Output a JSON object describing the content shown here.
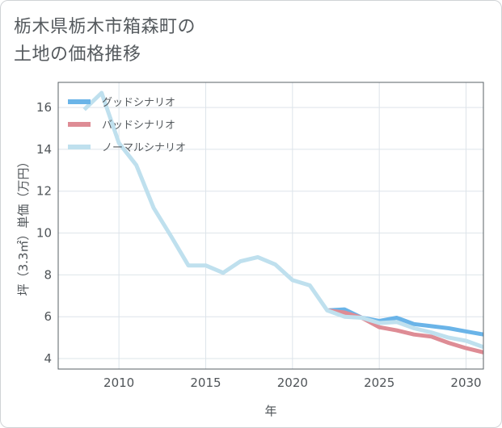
{
  "title_lines": [
    "栃木県栃木市箱森町の",
    "土地の価格推移"
  ],
  "chart_data": {
    "type": "line",
    "xlabel": "年",
    "ylabel": "坪（3.3㎡）単価（万円）",
    "xlim": [
      2006.5,
      2031
    ],
    "ylim": [
      3.5,
      17.2
    ],
    "xticks": [
      2010,
      2015,
      2020,
      2025,
      2030
    ],
    "yticks": [
      4,
      6,
      8,
      10,
      12,
      14,
      16
    ],
    "grid": true,
    "legend_position": "top-left",
    "series": [
      {
        "name": "グッドシナリオ",
        "color": "#6ab4e8",
        "x": [
          2022,
          2023,
          2024,
          2025,
          2026,
          2027,
          2028,
          2029,
          2030,
          2031
        ],
        "y": [
          6.3,
          6.35,
          5.95,
          5.8,
          5.95,
          5.65,
          5.55,
          5.45,
          5.3,
          5.15
        ]
      },
      {
        "name": "バッドシナリオ",
        "color": "#de8c95",
        "x": [
          2022,
          2023,
          2024,
          2025,
          2026,
          2027,
          2028,
          2029,
          2030,
          2031
        ],
        "y": [
          6.3,
          6.2,
          5.95,
          5.5,
          5.35,
          5.15,
          5.05,
          4.75,
          4.5,
          4.3
        ]
      },
      {
        "name": "ノーマルシナリオ",
        "color": "#bfe0ee",
        "x": [
          2008,
          2009,
          2010,
          2011,
          2012,
          2013,
          2014,
          2015,
          2016,
          2017,
          2018,
          2019,
          2020,
          2021,
          2022,
          2023,
          2024,
          2025,
          2026,
          2027,
          2028,
          2029,
          2030,
          2031
        ],
        "y": [
          15.9,
          16.7,
          14.3,
          13.25,
          11.2,
          9.85,
          8.45,
          8.45,
          8.1,
          8.65,
          8.85,
          8.5,
          7.75,
          7.5,
          6.3,
          6.0,
          5.95,
          5.7,
          5.75,
          5.45,
          5.25,
          5.0,
          4.85,
          4.55
        ]
      }
    ]
  }
}
